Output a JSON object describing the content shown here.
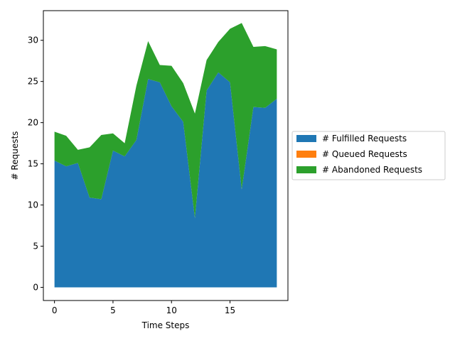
{
  "chart_data": {
    "type": "area",
    "stacked": true,
    "xlabel": "Time Steps",
    "ylabel": "# Requests",
    "xlim": [
      -0.95,
      19.95
    ],
    "ylim": [
      -1.6,
      33.6
    ],
    "xticks": [
      0,
      5,
      10,
      15
    ],
    "yticks": [
      0,
      5,
      10,
      15,
      20,
      25,
      30
    ],
    "x": [
      0,
      1,
      2,
      3,
      4,
      5,
      6,
      7,
      8,
      9,
      10,
      11,
      12,
      13,
      14,
      15,
      16,
      17,
      18,
      19
    ],
    "series": [
      {
        "name": "# Fulfilled Requests",
        "color": "#1f77b4",
        "values": [
          15.4,
          14.7,
          15.1,
          10.9,
          10.7,
          16.6,
          15.9,
          17.9,
          25.3,
          24.9,
          22.0,
          20.1,
          8.4,
          23.9,
          26.1,
          24.9,
          11.9,
          21.9,
          21.8,
          22.9
        ]
      },
      {
        "name": "# Queued Requests",
        "color": "#ff7f0e",
        "values": [
          0,
          0,
          0,
          0,
          0,
          0,
          0,
          0,
          0,
          0,
          0,
          0,
          0,
          0,
          0,
          0,
          0,
          0,
          0,
          0
        ]
      },
      {
        "name": "# Abandoned Requests",
        "color": "#2ca02c",
        "values": [
          3.5,
          3.7,
          1.6,
          6.1,
          7.8,
          2.1,
          1.6,
          6.6,
          4.6,
          2.1,
          4.9,
          4.7,
          12.7,
          3.7,
          3.7,
          6.5,
          20.2,
          7.3,
          7.5,
          6.0
        ]
      }
    ],
    "legend_position": "right"
  }
}
